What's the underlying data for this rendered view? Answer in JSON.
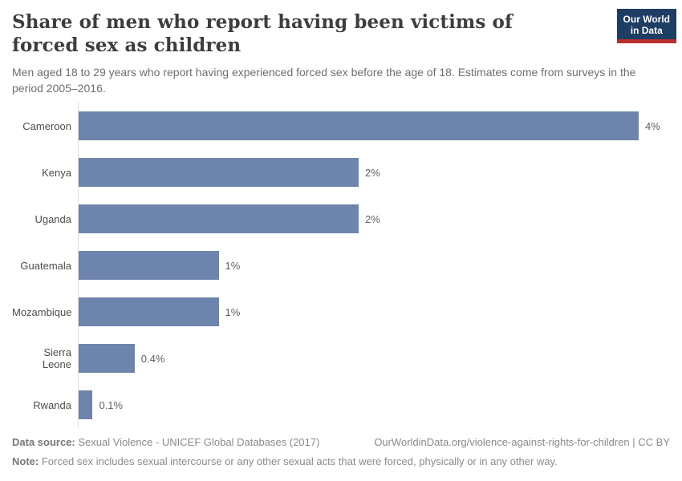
{
  "header": {
    "title": "Share of men who report having been victims of forced sex as children",
    "subtitle": "Men aged 18 to 29 years who report having experienced forced sex before the age of 18. Estimates come from surveys in the period 2005–2016.",
    "logo": {
      "line1": "Our World",
      "line2": "in Data",
      "background_color": "#1d3d63",
      "underline_color": "#bc2d2f"
    }
  },
  "chart_data": {
    "type": "bar",
    "orientation": "horizontal",
    "title": "Share of men who report having been victims of forced sex as children",
    "subtitle": "Men aged 18 to 29 years who report having experienced forced sex before the age of 18. Estimates come from surveys in the period 2005–2016.",
    "categories": [
      "Cameroon",
      "Kenya",
      "Uganda",
      "Guatemala",
      "Mozambique",
      "Sierra Leone",
      "Rwanda"
    ],
    "values": [
      4,
      2,
      2,
      1,
      1,
      0.4,
      0.1
    ],
    "value_labels": [
      "4%",
      "2%",
      "2%",
      "1%",
      "1%",
      "0.4%",
      "0.1%"
    ],
    "unit": "%",
    "xlabel": "",
    "ylabel": "",
    "xlim": [
      0,
      4
    ],
    "grid": false,
    "legend": false,
    "bar_color": "#6d85ad",
    "axis_line_color": "#dedede"
  },
  "footer": {
    "datasource_label": "Data source:",
    "datasource_value": " Sexual Violence - UNICEF Global Databases (2017)",
    "attribution": "OurWorldinData.org/violence-against-rights-for-children | CC BY",
    "note_label": "Note:",
    "note_value": " Forced sex includes sexual intercourse or any other sexual acts that were forced, physically or in any other way."
  }
}
